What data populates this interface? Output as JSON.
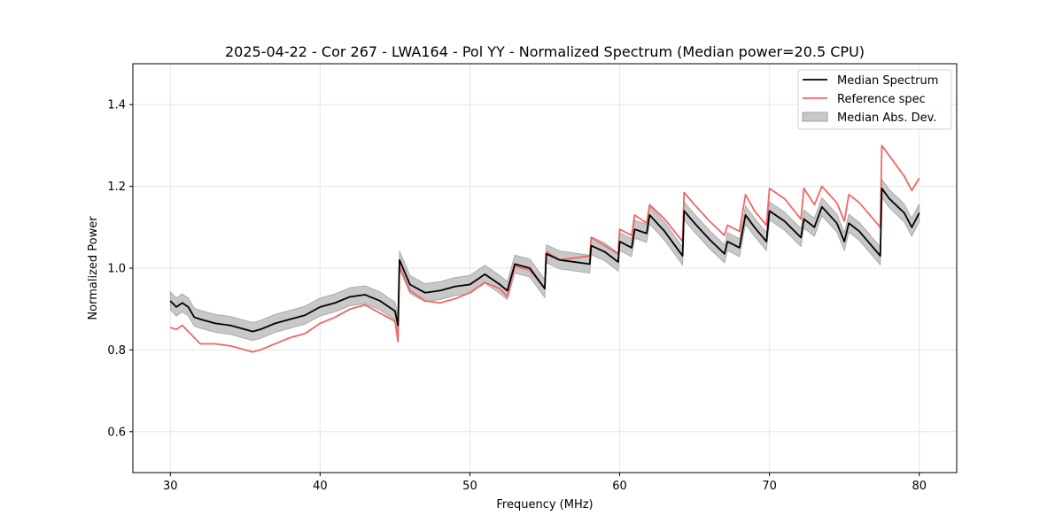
{
  "chart_data": {
    "type": "line",
    "title": "2025-04-22 - Cor 267 - LWA164 - Pol YY - Normalized Spectrum (Median power=20.5 CPU)",
    "xlabel": "Frequency (MHz)",
    "ylabel": "Normalized Power",
    "xlim": [
      27.5,
      82.5
    ],
    "ylim": [
      0.5,
      1.5
    ],
    "xticks": [
      30,
      40,
      50,
      60,
      70,
      80
    ],
    "yticks": [
      0.6,
      0.8,
      1.0,
      1.2,
      1.4
    ],
    "xtick_labels": [
      "30",
      "40",
      "50",
      "60",
      "70",
      "80"
    ],
    "ytick_labels": [
      "0.6",
      "0.8",
      "1.0",
      "1.2",
      "1.4"
    ],
    "grid": true,
    "legend_position": "top-right",
    "legend": {
      "median": "Median Spectrum",
      "reference": "Reference spec",
      "mad": "Median Abs. Dev."
    },
    "colors": {
      "median": "#000000",
      "reference": "#f06666",
      "mad_fill": "#c8c8c8",
      "mad_edge": "#a0a0a0",
      "grid": "#e6e6e6"
    },
    "series": [
      {
        "name": "Median Spectrum",
        "x": [
          30.0,
          30.4,
          30.8,
          31.2,
          31.6,
          32.0,
          33.0,
          34.0,
          35.0,
          35.5,
          36.0,
          37.0,
          38.0,
          39.0,
          40.0,
          41.0,
          42.0,
          43.0,
          44.0,
          45.0,
          45.2,
          45.3,
          46.0,
          47.0,
          48.0,
          49.0,
          50.0,
          51.0,
          52.0,
          52.5,
          53.0,
          54.0,
          55.0,
          55.1,
          56.0,
          57.0,
          58.0,
          58.1,
          59.0,
          59.9,
          60.0,
          60.8,
          61.0,
          61.8,
          62.0,
          63.0,
          64.2,
          64.3,
          65.0,
          66.0,
          67.0,
          67.2,
          68.0,
          68.4,
          69.0,
          69.8,
          70.0,
          71.0,
          72.1,
          72.3,
          73.0,
          73.5,
          74.5,
          75.0,
          75.3,
          76.0,
          77.4,
          77.5,
          78.0,
          79.0,
          79.5,
          80.0
        ],
        "y": [
          0.92,
          0.905,
          0.915,
          0.905,
          0.88,
          0.875,
          0.865,
          0.86,
          0.85,
          0.845,
          0.85,
          0.865,
          0.875,
          0.885,
          0.905,
          0.915,
          0.93,
          0.935,
          0.92,
          0.895,
          0.86,
          1.02,
          0.96,
          0.94,
          0.945,
          0.955,
          0.96,
          0.985,
          0.96,
          0.945,
          1.01,
          1.0,
          0.95,
          1.035,
          1.02,
          1.015,
          1.01,
          1.055,
          1.04,
          1.015,
          1.065,
          1.05,
          1.095,
          1.085,
          1.13,
          1.09,
          1.03,
          1.14,
          1.11,
          1.07,
          1.035,
          1.065,
          1.05,
          1.13,
          1.1,
          1.065,
          1.14,
          1.115,
          1.075,
          1.12,
          1.1,
          1.15,
          1.11,
          1.065,
          1.11,
          1.09,
          1.03,
          1.195,
          1.17,
          1.135,
          1.1,
          1.135
        ]
      },
      {
        "name": "Reference spec",
        "x": [
          30.0,
          30.4,
          30.8,
          31.2,
          31.6,
          32.0,
          33.0,
          34.0,
          35.0,
          35.5,
          36.0,
          37.0,
          38.0,
          39.0,
          40.0,
          41.0,
          42.0,
          43.0,
          44.0,
          45.0,
          45.2,
          45.3,
          46.0,
          47.0,
          48.0,
          49.0,
          50.0,
          51.0,
          52.0,
          52.5,
          53.0,
          54.0,
          55.0,
          55.1,
          56.0,
          57.0,
          58.0,
          58.1,
          59.0,
          59.9,
          60.0,
          60.8,
          61.0,
          61.8,
          62.0,
          63.0,
          64.2,
          64.3,
          65.0,
          66.0,
          67.0,
          67.2,
          68.0,
          68.4,
          69.0,
          69.8,
          70.0,
          71.0,
          72.1,
          72.3,
          73.0,
          73.5,
          74.5,
          75.0,
          75.3,
          76.0,
          77.4,
          77.5,
          78.0,
          79.0,
          79.5,
          80.0
        ],
        "y": [
          0.855,
          0.85,
          0.86,
          0.845,
          0.83,
          0.815,
          0.815,
          0.81,
          0.8,
          0.795,
          0.8,
          0.815,
          0.83,
          0.84,
          0.865,
          0.88,
          0.9,
          0.91,
          0.89,
          0.87,
          0.82,
          1.005,
          0.945,
          0.92,
          0.915,
          0.925,
          0.94,
          0.965,
          0.95,
          0.93,
          1.005,
          0.995,
          0.95,
          1.04,
          1.02,
          1.025,
          1.03,
          1.075,
          1.055,
          1.035,
          1.095,
          1.08,
          1.13,
          1.11,
          1.155,
          1.12,
          1.065,
          1.185,
          1.155,
          1.115,
          1.08,
          1.105,
          1.09,
          1.18,
          1.14,
          1.105,
          1.195,
          1.17,
          1.12,
          1.195,
          1.155,
          1.2,
          1.16,
          1.115,
          1.18,
          1.16,
          1.1,
          1.3,
          1.275,
          1.225,
          1.19,
          1.22
        ]
      }
    ],
    "mad_band_halfwidth": 0.022
  }
}
